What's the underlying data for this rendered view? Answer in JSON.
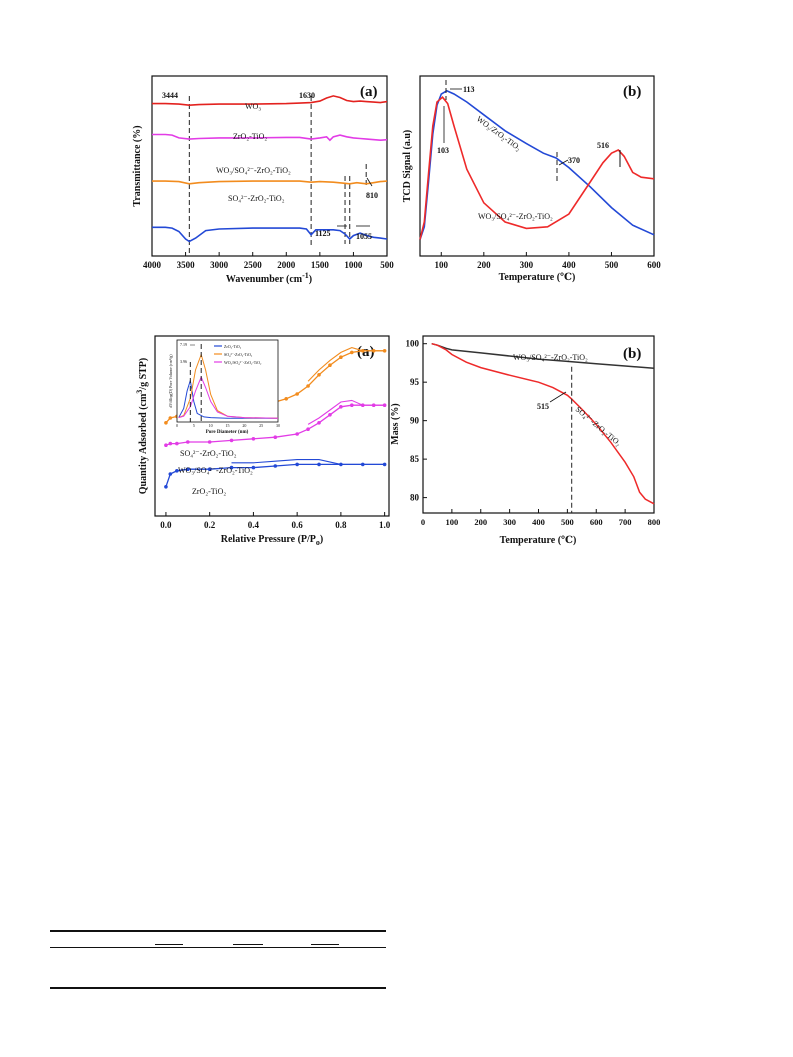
{
  "chart_data": [
    {
      "id": "p1",
      "type": "line",
      "panel_label": "(a)",
      "xlabel": "Wavenumber (cm",
      "xlabel_sup": "-1",
      "xlabel_end": ")",
      "ylabel": "Transmittance (%)",
      "xlim": [
        4000,
        500
      ],
      "xticks": [
        "4000",
        "3500",
        "3000",
        "2500",
        "2000",
        "1500",
        "1000",
        "500"
      ],
      "series": [
        {
          "name": "WO₃",
          "color": "#e3221f",
          "x": [
            4000,
            3800,
            3600,
            3444,
            3300,
            3000,
            2500,
            2000,
            1800,
            1630,
            1500,
            1400,
            1300,
            1200,
            1100,
            1000,
            900,
            810,
            700,
            600,
            500
          ],
          "y": [
            0.82,
            0.82,
            0.81,
            0.79,
            0.8,
            0.81,
            0.81,
            0.82,
            0.83,
            0.84,
            0.87,
            0.93,
            0.97,
            0.94,
            0.88,
            0.86,
            0.87,
            0.86,
            0.85,
            0.84,
            0.86
          ]
        },
        {
          "name": "ZrO₂-TiO₂",
          "color": "#e23ce6",
          "x": [
            4000,
            3800,
            3700,
            3600,
            3444,
            3300,
            3000,
            2500,
            2000,
            1800,
            1630,
            1500,
            1400,
            1350,
            1300,
            1200,
            1100,
            1000,
            900,
            800,
            600,
            500
          ],
          "y": [
            0.7,
            0.7,
            0.69,
            0.64,
            0.62,
            0.63,
            0.64,
            0.64,
            0.65,
            0.65,
            0.62,
            0.64,
            0.66,
            0.6,
            0.66,
            0.69,
            0.66,
            0.64,
            0.63,
            0.62,
            0.6,
            0.61
          ]
        },
        {
          "name": "WO₃/SO₄²⁻-ZrO₂-TiO₂",
          "color": "#f28c1e",
          "x": [
            4000,
            3800,
            3600,
            3444,
            3300,
            3000,
            2500,
            2000,
            1800,
            1630,
            1500,
            1300,
            1125,
            1055,
            950,
            810,
            700,
            600,
            500
          ],
          "y": [
            0.48,
            0.48,
            0.47,
            0.43,
            0.45,
            0.47,
            0.48,
            0.48,
            0.48,
            0.46,
            0.47,
            0.46,
            0.44,
            0.43,
            0.45,
            0.43,
            0.45,
            0.47,
            0.48
          ]
        },
        {
          "name": "SO₄²⁻-ZrO₂-TiO₂",
          "color": "#2349d6",
          "x": [
            4000,
            3800,
            3700,
            3600,
            3500,
            3444,
            3350,
            3200,
            3000,
            2500,
            2000,
            1800,
            1700,
            1630,
            1560,
            1500,
            1300,
            1200,
            1125,
            1055,
            1000,
            900,
            800,
            700,
            600,
            500
          ],
          "y": [
            0.34,
            0.34,
            0.33,
            0.29,
            0.2,
            0.17,
            0.21,
            0.3,
            0.32,
            0.33,
            0.33,
            0.33,
            0.32,
            0.25,
            0.31,
            0.31,
            0.31,
            0.3,
            0.26,
            0.2,
            0.24,
            0.27,
            0.24,
            0.22,
            0.21,
            0.2
          ]
        }
      ],
      "annotations": [
        {
          "text": "3444",
          "x": 3444
        },
        {
          "text": "1630",
          "x": 1630
        },
        {
          "text": "810",
          "x": 810
        },
        {
          "text": "1125",
          "x": 1125
        },
        {
          "text": "1055",
          "x": 1055
        }
      ]
    },
    {
      "id": "p2",
      "type": "line",
      "panel_label": "(b)",
      "xlabel": "Temperature (℃)",
      "ylabel": "TCD Signal (a.u)",
      "xlim": [
        50,
        600
      ],
      "xticks": [
        "100",
        "200",
        "300",
        "400",
        "500",
        "600"
      ],
      "series": [
        {
          "name": "WO₃/ZrO₂-TiO₂",
          "color": "#2349d6",
          "x": [
            50,
            60,
            70,
            80,
            90,
            100,
            113,
            130,
            160,
            200,
            250,
            300,
            340,
            370,
            400,
            450,
            500,
            550,
            600
          ],
          "y": [
            0.04,
            0.12,
            0.4,
            0.7,
            0.88,
            0.95,
            0.97,
            0.95,
            0.9,
            0.82,
            0.72,
            0.64,
            0.58,
            0.55,
            0.49,
            0.37,
            0.24,
            0.13,
            0.07
          ]
        },
        {
          "name": "WO₃/SO₄²⁻-ZrO₂-TiO₂",
          "color": "#ee2a2a",
          "x": [
            50,
            60,
            70,
            80,
            90,
            103,
            115,
            130,
            160,
            200,
            250,
            300,
            350,
            400,
            450,
            480,
            500,
            516,
            530,
            550,
            570,
            600
          ],
          "y": [
            0.04,
            0.15,
            0.45,
            0.75,
            0.9,
            0.93,
            0.89,
            0.75,
            0.48,
            0.27,
            0.15,
            0.11,
            0.12,
            0.2,
            0.4,
            0.52,
            0.58,
            0.6,
            0.56,
            0.46,
            0.43,
            0.42
          ]
        }
      ],
      "annotations": [
        {
          "text": "113",
          "x": 113
        },
        {
          "text": "103",
          "x": 103
        },
        {
          "text": "370",
          "x": 370
        },
        {
          "text": "516",
          "x": 516
        }
      ]
    },
    {
      "id": "p3",
      "type": "line",
      "panel_label": "(a)",
      "xlabel": "Relative Pressure (P/P",
      "xlabel_sub": "o",
      "xlabel_end": ")",
      "ylabel": "Quantity Adsorbed (cm",
      "ylabel_sup": "3",
      "ylabel_end": "/g STP)",
      "xlim": [
        -0.05,
        1.02
      ],
      "xticks": [
        "0.0",
        "0.2",
        "0.4",
        "0.6",
        "0.8",
        "1.0"
      ],
      "series": [
        {
          "name": "WO₃/SO₄²⁻-ZrO₂-TiO₂",
          "color": "#f28c1e",
          "x": [
            0.0,
            0.02,
            0.05,
            0.1,
            0.2,
            0.3,
            0.4,
            0.5,
            0.55,
            0.6,
            0.65,
            0.7,
            0.75,
            0.8,
            0.85,
            0.9,
            0.95,
            1.0
          ],
          "y": [
            0.52,
            0.55,
            0.56,
            0.57,
            0.58,
            0.6,
            0.62,
            0.65,
            0.67,
            0.7,
            0.75,
            0.82,
            0.88,
            0.93,
            0.96,
            0.97,
            0.97,
            0.97
          ]
        },
        {
          "name": "SO₄²⁻-ZrO₂-TiO₂",
          "color": "#e23ce6",
          "x": [
            0.0,
            0.02,
            0.05,
            0.1,
            0.2,
            0.3,
            0.4,
            0.5,
            0.6,
            0.65,
            0.7,
            0.75,
            0.8,
            0.85,
            0.9,
            0.95,
            1.0
          ],
          "y": [
            0.38,
            0.39,
            0.39,
            0.4,
            0.4,
            0.41,
            0.42,
            0.43,
            0.45,
            0.48,
            0.52,
            0.57,
            0.62,
            0.63,
            0.63,
            0.63,
            0.63
          ]
        },
        {
          "name": "ZrO₂-TiO₂",
          "color": "#2349d6",
          "x": [
            0.0,
            0.02,
            0.05,
            0.1,
            0.2,
            0.3,
            0.4,
            0.5,
            0.6,
            0.7,
            0.8,
            0.9,
            1.0
          ],
          "y": [
            0.12,
            0.2,
            0.22,
            0.23,
            0.23,
            0.24,
            0.24,
            0.25,
            0.26,
            0.26,
            0.26,
            0.26,
            0.26
          ]
        }
      ],
      "series_labels": [
        "SO₄²⁻-ZrO₂-TiO₂",
        "WO₃/SO₄²⁻-ZrO₂-TiO₂",
        "ZrO₂-TiO₂"
      ],
      "inset": {
        "xlabel": "Pore Diameter (nm)",
        "ylabel": "dV/dlog(D) Pore Volume (cm³/g)",
        "xticks": [
          "0",
          "5",
          "10",
          "15",
          "20",
          "25",
          "30"
        ],
        "xlim": [
          0,
          30
        ],
        "legend": [
          {
            "name": "ZrO₂-TiO₂",
            "color": "#2349d6"
          },
          {
            "name": "SO₄²⁻-ZrO₂-TiO₂",
            "color": "#f28c1e"
          },
          {
            "name": "WO₃/SO₄²⁻-ZrO₂-TiO₂",
            "color": "#e23ce6"
          }
        ],
        "annotations": [
          {
            "text": "7.19",
            "x": 7.19
          },
          {
            "text": "3.96",
            "x": 3.96
          }
        ],
        "series": [
          {
            "name": "ZrO₂-TiO₂",
            "color": "#2349d6",
            "x": [
              0.5,
              2,
              3,
              3.96,
              5,
              6,
              8,
              10,
              15,
              20,
              30
            ],
            "y": [
              0.02,
              0.15,
              0.4,
              0.55,
              0.25,
              0.08,
              0.03,
              0.02,
              0.01,
              0.01,
              0.01
            ]
          },
          {
            "name": "SO₄²⁻-ZrO₂-TiO₂",
            "color": "#f28c1e",
            "x": [
              0.5,
              2,
              4,
              5.5,
              7.19,
              8.5,
              10,
              12,
              15,
              20,
              30
            ],
            "y": [
              0.02,
              0.05,
              0.3,
              0.7,
              0.92,
              0.7,
              0.35,
              0.12,
              0.04,
              0.02,
              0.01
            ]
          },
          {
            "name": "WO₃/SO₄²⁻-ZrO₂-TiO₂",
            "color": "#e23ce6",
            "x": [
              0.5,
              2,
              4,
              5.5,
              7.2,
              8.5,
              10,
              12,
              15,
              20,
              30
            ],
            "y": [
              0.02,
              0.04,
              0.18,
              0.4,
              0.6,
              0.45,
              0.25,
              0.1,
              0.04,
              0.02,
              0.01
            ]
          }
        ]
      }
    },
    {
      "id": "p4",
      "type": "line",
      "panel_label": "(b)",
      "xlabel": "Temperature (℃)",
      "ylabel": "Mass (%)",
      "xlim": [
        0,
        800
      ],
      "ylim": [
        78,
        101
      ],
      "xticks": [
        "0",
        "100",
        "200",
        "300",
        "400",
        "500",
        "600",
        "700",
        "800"
      ],
      "yticks": [
        "80",
        "85",
        "90",
        "95",
        "100"
      ],
      "series": [
        {
          "name": "WO₃/SO₄²⁻-ZrO₂-TiO₂",
          "color": "#333333",
          "x": [
            30,
            50,
            80,
            100,
            200,
            300,
            400,
            500,
            600,
            700,
            800
          ],
          "y": [
            100.0,
            99.8,
            99.4,
            99.2,
            98.8,
            98.4,
            98.0,
            97.7,
            97.4,
            97.1,
            96.8
          ]
        },
        {
          "name": "SO₄²⁻-ZrO₂-TiO₂",
          "color": "#ee2a2a",
          "x": [
            30,
            50,
            80,
            100,
            150,
            200,
            300,
            400,
            450,
            500,
            515,
            550,
            600,
            650,
            700,
            730,
            750,
            770,
            800
          ],
          "y": [
            100.0,
            99.8,
            99.2,
            98.6,
            97.6,
            96.9,
            95.9,
            95.0,
            94.3,
            93.3,
            92.8,
            91.5,
            89.5,
            87.2,
            84.6,
            82.7,
            80.7,
            79.8,
            79.2
          ]
        }
      ],
      "annotations": [
        {
          "text": "515",
          "x": 515
        }
      ]
    }
  ]
}
